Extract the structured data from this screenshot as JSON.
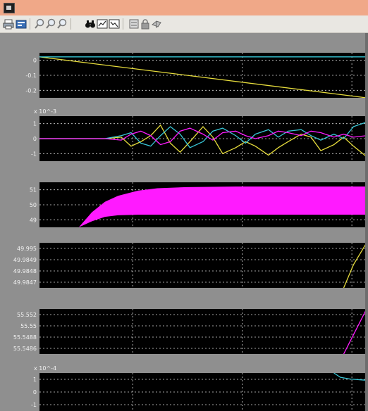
{
  "colors": {
    "titlebar": "#f0a888",
    "toolbar": "#e9e7e2",
    "scope_background": "#8f8f8f",
    "axes_background": "#000000",
    "grid": "#d8d8d8",
    "tick_text": "#f2f2f2",
    "yellow": "#e6dc3c",
    "cyan": "#38c6d6",
    "magenta": "#ff1aff"
  },
  "toolbar": {
    "icons": [
      "print-icon",
      "params-icon",
      "zoom-in-icon",
      "zoom-x-icon",
      "zoom-y-icon",
      "autoscale-icon",
      "save-axes-icon",
      "restore-axes-icon",
      "floating-scope-icon",
      "lock-icon",
      "signal-select-icon"
    ]
  },
  "chart_data": [
    {
      "type": "line",
      "panel": 1,
      "ylim": [
        -0.2,
        0.02
      ],
      "yticks": [
        "0",
        "-0.1",
        "-0.2"
      ],
      "xlim": [
        0,
        1
      ],
      "series": [
        {
          "color": "#e6dc3c",
          "x": [
            0,
            1
          ],
          "y": [
            0,
            -0.2
          ]
        },
        {
          "color": "#38c6d6",
          "x": [
            0,
            1
          ],
          "y": [
            0,
            0
          ]
        }
      ]
    },
    {
      "type": "line",
      "panel": 2,
      "multiplier": "x 10^-3",
      "ylim": [
        -1.5,
        1.5
      ],
      "yticks": [
        "1",
        "0",
        "-1"
      ],
      "xlim": [
        0,
        1
      ],
      "series": [
        {
          "color": "#e6dc3c",
          "x": [
            0,
            0.1,
            0.2,
            0.25,
            0.28,
            0.31,
            0.34,
            0.37,
            0.4,
            0.43,
            0.46,
            0.5,
            0.53,
            0.56,
            0.6,
            0.63,
            0.66,
            0.7,
            0.73,
            0.76,
            0.8,
            0.83,
            0.86,
            0.9,
            0.93,
            0.96,
            1.0
          ],
          "y": [
            0,
            0,
            0,
            0.1,
            -0.5,
            -0.2,
            0.2,
            0.9,
            -0.3,
            -0.9,
            -0.2,
            0.8,
            0.1,
            -1.0,
            -0.6,
            -0.2,
            -0.5,
            -1.1,
            -0.6,
            -0.2,
            0.3,
            0.1,
            -0.8,
            -0.4,
            0.1,
            -0.5,
            -1.2
          ]
        },
        {
          "color": "#38c6d6",
          "x": [
            0,
            0.1,
            0.2,
            0.25,
            0.28,
            0.31,
            0.34,
            0.37,
            0.4,
            0.43,
            0.46,
            0.5,
            0.53,
            0.56,
            0.6,
            0.63,
            0.66,
            0.7,
            0.73,
            0.76,
            0.8,
            0.83,
            0.86,
            0.9,
            0.93,
            0.96,
            1.0
          ],
          "y": [
            0,
            0,
            0,
            0.2,
            0.4,
            -0.3,
            -0.5,
            0.2,
            0.8,
            0.3,
            -0.6,
            -0.2,
            0.5,
            0.7,
            0.2,
            -0.3,
            0.3,
            0.6,
            0.1,
            0.5,
            0.6,
            0.2,
            -0.1,
            0.3,
            0.0,
            0.8,
            1.1
          ]
        },
        {
          "color": "#ff1aff",
          "x": [
            0,
            0.1,
            0.2,
            0.25,
            0.28,
            0.31,
            0.34,
            0.37,
            0.4,
            0.43,
            0.46,
            0.5,
            0.53,
            0.56,
            0.6,
            0.63,
            0.66,
            0.7,
            0.73,
            0.76,
            0.8,
            0.83,
            0.86,
            0.9,
            0.93,
            0.96,
            1.0
          ],
          "y": [
            0,
            0,
            0,
            -0.1,
            0.3,
            0.5,
            0.2,
            -0.4,
            -0.2,
            0.5,
            0.7,
            0.3,
            -0.1,
            0.4,
            0.5,
            0.2,
            0.0,
            0.2,
            0.5,
            0.4,
            0.2,
            0.5,
            0.4,
            0.1,
            0.3,
            0.1,
            0.2
          ]
        }
      ]
    },
    {
      "type": "area",
      "panel": 3,
      "ylim": [
        49.5,
        51
      ],
      "yticks": [
        "51",
        "50",
        "49"
      ],
      "xlim": [
        0,
        1
      ],
      "series": [
        {
          "color": "#ff1aff",
          "x": [
            0,
            0.12,
            0.16,
            0.2,
            0.24,
            0.3,
            0.36,
            0.45,
            0.6,
            0.8,
            1.0
          ],
          "upper": [
            49.5,
            49.5,
            50.0,
            50.35,
            50.55,
            50.72,
            50.8,
            50.84,
            50.86,
            50.86,
            50.86
          ],
          "lower": [
            49.5,
            49.5,
            49.7,
            49.85,
            49.9,
            49.92,
            49.92,
            49.92,
            49.92,
            49.92,
            49.92
          ]
        }
      ]
    },
    {
      "type": "line",
      "panel": 4,
      "ylim": [
        49.9847,
        49.995
      ],
      "yticks": [
        "49.995",
        "49.9849",
        "49.9848",
        "49.9847"
      ],
      "xlim": [
        0,
        1
      ],
      "series": [
        {
          "color": "#e6dc3c",
          "x": [
            0.93,
            0.96,
            1.0
          ],
          "y": [
            49.9847,
            49.99,
            49.995
          ]
        }
      ]
    },
    {
      "type": "line",
      "panel": 5,
      "ylim": [
        55.5485,
        55.552
      ],
      "yticks": [
        "55.552",
        "55.55",
        "55.5488",
        "55.5486"
      ],
      "xlim": [
        0,
        1
      ],
      "series": [
        {
          "color": "#ff1aff",
          "x": [
            0.93,
            0.96,
            1.0
          ],
          "y": [
            55.5485,
            55.55,
            55.552
          ]
        }
      ]
    },
    {
      "type": "line",
      "panel": 6,
      "multiplier": "x 10^-4",
      "ylim": [
        -1,
        1.2
      ],
      "yticks": [
        "1",
        "0",
        "-1"
      ],
      "xlim": [
        0,
        1
      ],
      "series": [
        {
          "color": "#38c6d6",
          "x": [
            0.9,
            0.92,
            0.95,
            1.0
          ],
          "y": [
            1.2,
            0.95,
            0.85,
            0.78
          ]
        }
      ]
    }
  ]
}
